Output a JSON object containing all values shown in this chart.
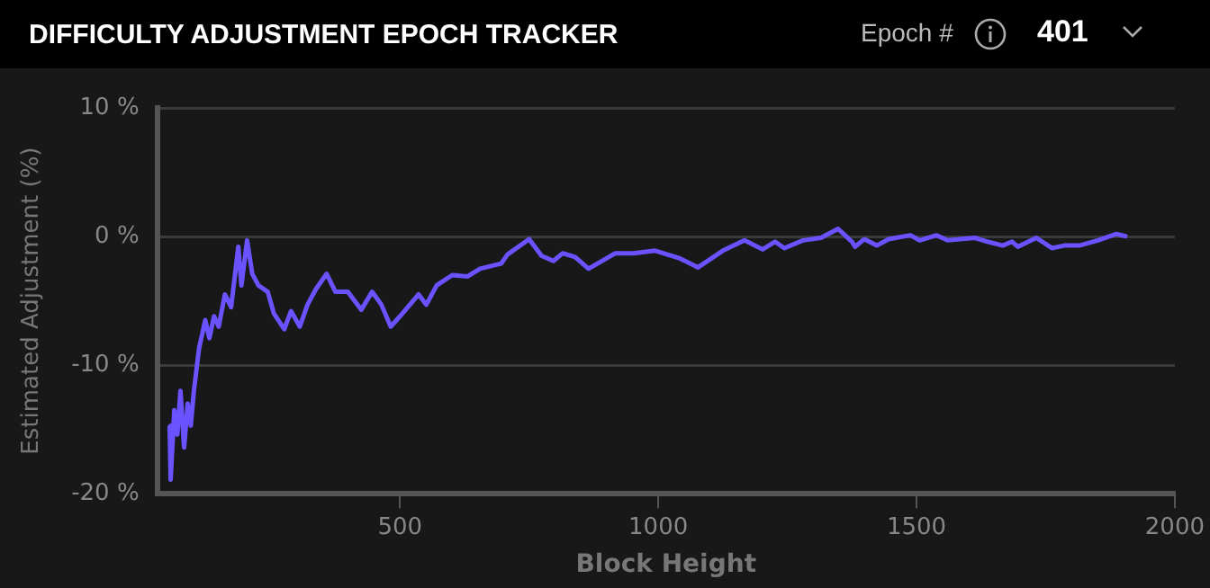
{
  "chart_data": {
    "type": "line",
    "title": "DIFFICULTY ADJUSTMENT EPOCH TRACKER",
    "xlabel": "Block Height",
    "ylabel": "Estimated Adjustment (%)",
    "annotations": [
      "Epoch #",
      "401"
    ],
    "xlim": [
      30,
      2000
    ],
    "xticks": [
      500,
      1000,
      1500,
      2000
    ],
    "ylim": [
      -20,
      10
    ],
    "yticks": [
      {
        "value": -20,
        "label": "-20 %"
      },
      {
        "value": -10,
        "label": "-10 %"
      },
      {
        "value": 0,
        "label": "0 %"
      },
      {
        "value": 10,
        "label": "10 %"
      }
    ],
    "grid": "y",
    "legend": false,
    "marker": "none",
    "line_style": "solid",
    "series": [
      {
        "color": "#6b52ff",
        "x": [
          54,
          56,
          63,
          69,
          75,
          82,
          89,
          95,
          101,
          111,
          123,
          131,
          140,
          149,
          161,
          173,
          187,
          193,
          204,
          214,
          226,
          244,
          256,
          276,
          289,
          306,
          321,
          337,
          358,
          375,
          399,
          425,
          446,
          464,
          482,
          500,
          536,
          551,
          571,
          601,
          631,
          655,
          696,
          708,
          750,
          774,
          797,
          815,
          839,
          865,
          917,
          952,
          994,
          1042,
          1077,
          1125,
          1167,
          1202,
          1226,
          1244,
          1280,
          1315,
          1348,
          1375,
          1381,
          1399,
          1423,
          1446,
          1488,
          1506,
          1539,
          1560,
          1613,
          1637,
          1667,
          1685,
          1696,
          1732,
          1762,
          1786,
          1815,
          1851,
          1887,
          1908
        ],
        "values": [
          -14.7,
          -18.9,
          -13.5,
          -15.4,
          -12.0,
          -16.4,
          -13.0,
          -14.7,
          -12.0,
          -8.7,
          -6.5,
          -7.9,
          -6.2,
          -7.0,
          -4.5,
          -5.5,
          -0.8,
          -3.8,
          -0.3,
          -2.9,
          -3.8,
          -4.3,
          -6.0,
          -7.2,
          -5.8,
          -7.0,
          -5.3,
          -4.1,
          -2.9,
          -4.3,
          -4.3,
          -5.7,
          -4.3,
          -5.3,
          -7.0,
          -6.2,
          -4.5,
          -5.3,
          -3.8,
          -3.0,
          -3.1,
          -2.5,
          -2.1,
          -1.4,
          -0.2,
          -1.5,
          -1.9,
          -1.3,
          -1.6,
          -2.5,
          -1.3,
          -1.3,
          -1.1,
          -1.7,
          -2.4,
          -1.1,
          -0.3,
          -1.0,
          -0.4,
          -0.9,
          -0.3,
          -0.1,
          0.6,
          -0.4,
          -0.8,
          -0.2,
          -0.7,
          -0.2,
          0.1,
          -0.3,
          0.1,
          -0.3,
          -0.1,
          -0.4,
          -0.7,
          -0.4,
          -0.8,
          -0.1,
          -0.9,
          -0.7,
          -0.7,
          -0.3,
          0.2,
          0.0
        ]
      }
    ]
  }
}
